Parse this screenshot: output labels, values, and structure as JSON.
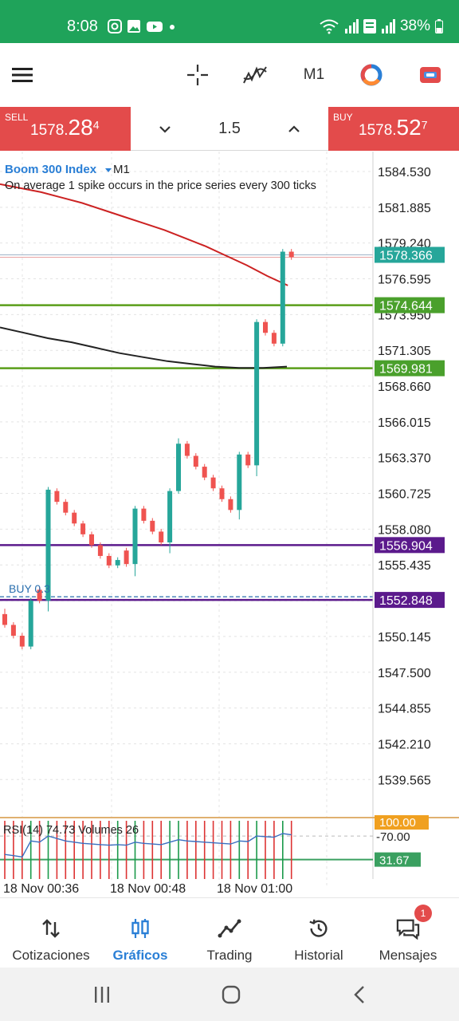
{
  "status_bar": {
    "time": "8:08",
    "battery": "38%",
    "icons": [
      "instagram-icon",
      "gallery-icon",
      "youtube-icon",
      "dot-icon",
      "wifi-icon",
      "signal-icon",
      "volte-icon",
      "signal2-icon",
      "battery-icon"
    ]
  },
  "toolbar": {
    "timeframe": "M1",
    "icons": [
      "menu-icon",
      "crosshair-icon",
      "indicators-icon",
      "timeframe",
      "colors-icon",
      "deriv-icon"
    ]
  },
  "trade": {
    "sell_label": "SELL",
    "sell_price_main": "1578.",
    "sell_price_big": "28",
    "sell_price_sup": "4",
    "buy_label": "BUY",
    "buy_price_main": "1578.",
    "buy_price_big": "52",
    "buy_price_sup": "7",
    "lot": "1.5"
  },
  "chart": {
    "symbol": "Boom 300 Index",
    "timeframe": "M1",
    "description": "On average 1 spike occurs in the price series every 300 ticks",
    "position_label": "BUY 0.3",
    "indicator_label": "RSI(14) 74.73 Volumes 26",
    "colors": {
      "bull": "#26a69a",
      "bear": "#ef5350",
      "ma_red": "#cc2222",
      "ma_black": "#222222",
      "green_line": "#5a9e1a",
      "purple_line": "#5b1a8c",
      "price_tag": "#26a69a",
      "level_tag": "#4aa02c"
    }
  },
  "chart_data": {
    "type": "candlestick",
    "ylim": [
      1537.0,
      1586.0
    ],
    "y_ticks": [
      "1584.530",
      "1581.885",
      "1579.240",
      "1576.595",
      "1573.950",
      "1571.305",
      "1568.660",
      "1566.015",
      "1563.370",
      "1560.725",
      "1558.080",
      "1555.435",
      "1552.790",
      "1550.145",
      "1547.500",
      "1544.855",
      "1542.210",
      "1539.565"
    ],
    "x_ticks": [
      "18 Nov 00:36",
      "18 Nov 00:48",
      "18 Nov 01:00"
    ],
    "current_price": "1578.366",
    "levels": [
      {
        "value": "1574.644",
        "color": "green"
      },
      {
        "value": "1569.981",
        "color": "green"
      },
      {
        "value": "1556.904",
        "color": "purple"
      },
      {
        "value": "1552.848",
        "color": "purple"
      }
    ],
    "candles": [
      {
        "o": 1551.8,
        "h": 1552.2,
        "c": 1551.0,
        "l": 1550.8
      },
      {
        "o": 1551.0,
        "h": 1551.2,
        "c": 1550.2,
        "l": 1550.0
      },
      {
        "o": 1550.2,
        "h": 1550.4,
        "c": 1549.4,
        "l": 1549.2
      },
      {
        "o": 1549.4,
        "h": 1553.0,
        "c": 1552.8,
        "l": 1549.2
      },
      {
        "o": 1553.6,
        "h": 1553.8,
        "c": 1552.8,
        "l": 1552.6
      },
      {
        "o": 1552.8,
        "h": 1561.2,
        "c": 1561.0,
        "l": 1552.0
      },
      {
        "o": 1560.9,
        "h": 1561.1,
        "c": 1560.1,
        "l": 1559.9
      },
      {
        "o": 1560.1,
        "h": 1560.3,
        "c": 1559.3,
        "l": 1559.1
      },
      {
        "o": 1559.3,
        "h": 1559.5,
        "c": 1558.5,
        "l": 1558.3
      },
      {
        "o": 1558.5,
        "h": 1558.7,
        "c": 1557.7,
        "l": 1557.5
      },
      {
        "o": 1557.7,
        "h": 1557.9,
        "c": 1556.9,
        "l": 1556.7
      },
      {
        "o": 1556.9,
        "h": 1557.1,
        "c": 1556.1,
        "l": 1555.9
      },
      {
        "o": 1556.1,
        "h": 1556.3,
        "c": 1555.4,
        "l": 1555.2
      },
      {
        "o": 1555.4,
        "h": 1556.0,
        "c": 1555.8,
        "l": 1555.2
      },
      {
        "o": 1556.5,
        "h": 1556.7,
        "c": 1555.5,
        "l": 1555.3
      },
      {
        "o": 1555.5,
        "h": 1559.8,
        "c": 1559.6,
        "l": 1554.6
      },
      {
        "o": 1559.6,
        "h": 1559.8,
        "c": 1558.7,
        "l": 1558.5
      },
      {
        "o": 1558.7,
        "h": 1558.9,
        "c": 1557.9,
        "l": 1557.7
      },
      {
        "o": 1557.9,
        "h": 1558.1,
        "c": 1557.1,
        "l": 1556.9
      },
      {
        "o": 1557.1,
        "h": 1561.1,
        "c": 1560.9,
        "l": 1556.3
      },
      {
        "o": 1560.9,
        "h": 1564.8,
        "c": 1564.4,
        "l": 1560.7
      },
      {
        "o": 1564.4,
        "h": 1564.6,
        "c": 1563.5,
        "l": 1563.3
      },
      {
        "o": 1563.5,
        "h": 1563.7,
        "c": 1562.7,
        "l": 1562.5
      },
      {
        "o": 1562.7,
        "h": 1562.9,
        "c": 1561.9,
        "l": 1561.7
      },
      {
        "o": 1561.9,
        "h": 1562.1,
        "c": 1561.1,
        "l": 1560.9
      },
      {
        "o": 1561.1,
        "h": 1561.3,
        "c": 1560.3,
        "l": 1560.1
      },
      {
        "o": 1560.3,
        "h": 1560.5,
        "c": 1559.5,
        "l": 1559.3
      },
      {
        "o": 1559.5,
        "h": 1563.8,
        "c": 1563.6,
        "l": 1558.8
      },
      {
        "o": 1563.6,
        "h": 1563.8,
        "c": 1562.8,
        "l": 1562.6
      },
      {
        "o": 1562.8,
        "h": 1573.6,
        "c": 1573.4,
        "l": 1562.0
      },
      {
        "o": 1573.4,
        "h": 1573.6,
        "c": 1572.6,
        "l": 1572.4
      },
      {
        "o": 1572.6,
        "h": 1572.8,
        "c": 1571.8,
        "l": 1571.6
      },
      {
        "o": 1571.8,
        "h": 1578.8,
        "c": 1578.6,
        "l": 1571.6
      },
      {
        "o": 1578.6,
        "h": 1578.8,
        "c": 1578.2,
        "l": 1578.0
      }
    ],
    "ma_red": [
      1583.6,
      1583.3,
      1583.0,
      1582.6,
      1582.2,
      1581.7,
      1581.2,
      1580.7,
      1580.2,
      1579.6,
      1579.0,
      1578.3,
      1577.6,
      1576.8,
      1576.1
    ],
    "ma_black": [
      1573.0,
      1572.6,
      1572.2,
      1571.9,
      1571.5,
      1571.1,
      1570.8,
      1570.5,
      1570.3,
      1570.1,
      1570.0,
      1570.0,
      1570.1
    ],
    "rsi": {
      "label": "RSI(14)",
      "value": "74.73",
      "levels": [
        "100.00",
        "70.00",
        "31.67"
      ]
    },
    "volumes": {
      "label": "Volumes",
      "value": "26"
    }
  },
  "bottom_nav": [
    {
      "label": "Cotizaciones",
      "icon": "quotes-icon"
    },
    {
      "label": "Gráficos",
      "icon": "charts-icon",
      "active": true
    },
    {
      "label": "Trading",
      "icon": "trading-icon"
    },
    {
      "label": "Historial",
      "icon": "history-icon"
    },
    {
      "label": "Mensajes",
      "icon": "messages-icon",
      "badge": "1"
    }
  ]
}
